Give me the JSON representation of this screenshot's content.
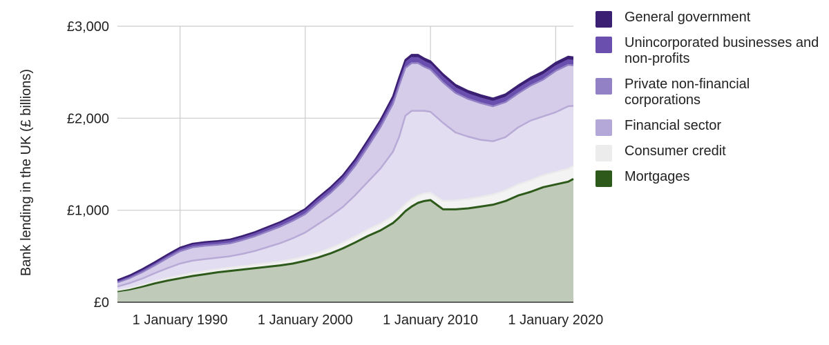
{
  "chart_data": {
    "type": "area",
    "stacked": true,
    "ylabel": "Bank lending in the UK (£ billions)",
    "xlabel": "",
    "x_ticks": [
      "1 January 1990",
      "1 January 2000",
      "1 January 2010",
      "1 January 2020"
    ],
    "y_ticks": [
      "£0",
      "£1,000",
      "£2,000",
      "£3,000"
    ],
    "ylim": [
      0,
      3000
    ],
    "grid": true,
    "legend_position": "right",
    "x_dates": [
      "1985-01-01",
      "1986-01-01",
      "1987-01-01",
      "1988-01-01",
      "1989-01-01",
      "1990-01-01",
      "1991-01-01",
      "1992-01-01",
      "1993-01-01",
      "1994-01-01",
      "1995-01-01",
      "1996-01-01",
      "1997-01-01",
      "1998-01-01",
      "1999-01-01",
      "2000-01-01",
      "2001-01-01",
      "2002-01-01",
      "2003-01-01",
      "2004-01-01",
      "2005-01-01",
      "2006-01-01",
      "2007-01-01",
      "2007-07-01",
      "2008-01-01",
      "2008-07-01",
      "2009-01-01",
      "2009-07-01",
      "2010-01-01",
      "2011-01-01",
      "2012-01-01",
      "2013-01-01",
      "2014-01-01",
      "2015-01-01",
      "2016-01-01",
      "2017-01-01",
      "2018-01-01",
      "2019-01-01",
      "2020-01-01",
      "2021-01-01",
      "2021-06-01"
    ],
    "series": [
      {
        "name": "Mortgages",
        "color": "#2d5a1b",
        "fill": "#bfcbb8",
        "values": [
          120,
          140,
          170,
          205,
          235,
          260,
          285,
          305,
          325,
          340,
          355,
          370,
          385,
          400,
          420,
          450,
          485,
          530,
          585,
          650,
          720,
          780,
          860,
          920,
          990,
          1040,
          1080,
          1100,
          1110,
          1010,
          1010,
          1020,
          1040,
          1060,
          1100,
          1160,
          1200,
          1250,
          1280,
          1310,
          1340
        ]
      },
      {
        "name": "Consumer credit",
        "color": "#ebebeb",
        "fill": "#f3f3f3",
        "values": [
          10,
          14,
          18,
          22,
          26,
          30,
          32,
          34,
          34,
          35,
          36,
          38,
          40,
          42,
          45,
          48,
          52,
          56,
          60,
          65,
          70,
          72,
          75,
          76,
          78,
          80,
          80,
          80,
          80,
          90,
          95,
          100,
          105,
          110,
          115,
          120,
          125,
          130,
          135,
          140,
          145
        ]
      },
      {
        "name": "Financial sector",
        "color": "#b8aad6",
        "fill": "#e2ddf0",
        "values": [
          40,
          55,
          70,
          90,
          110,
          130,
          135,
          130,
          125,
          125,
          135,
          150,
          175,
          200,
          230,
          260,
          310,
          350,
          390,
          450,
          520,
          600,
          700,
          800,
          960,
          960,
          920,
          900,
          880,
          850,
          740,
          680,
          620,
          580,
          580,
          620,
          650,
          640,
          650,
          680,
          650
        ]
      },
      {
        "name": "Private non-financial corporations",
        "color": "#9281c4",
        "fill": "#d4cce9",
        "values": [
          45,
          55,
          70,
          85,
          110,
          135,
          145,
          145,
          140,
          140,
          150,
          160,
          170,
          180,
          190,
          200,
          230,
          250,
          280,
          320,
          380,
          450,
          520,
          560,
          520,
          520,
          520,
          480,
          460,
          440,
          430,
          410,
          400,
          380,
          380,
          370,
          380,
          400,
          450,
          450,
          440
        ]
      },
      {
        "name": "Unincorporated businesses and non-profits",
        "color": "#6a4fae",
        "fill": "#6a4fae",
        "values": [
          15,
          17,
          19,
          21,
          23,
          25,
          26,
          26,
          27,
          28,
          29,
          30,
          32,
          34,
          36,
          38,
          40,
          42,
          44,
          46,
          48,
          50,
          52,
          54,
          55,
          56,
          55,
          55,
          54,
          54,
          53,
          52,
          51,
          50,
          50,
          50,
          50,
          50,
          50,
          52,
          50
        ]
      },
      {
        "name": "General government",
        "color": "#3b1f73",
        "fill": "#3b1f73",
        "values": [
          10,
          12,
          14,
          14,
          14,
          14,
          14,
          14,
          15,
          15,
          15,
          16,
          16,
          16,
          17,
          18,
          18,
          19,
          20,
          22,
          24,
          26,
          28,
          30,
          32,
          34,
          35,
          35,
          35,
          35,
          35,
          35,
          35,
          35,
          36,
          36,
          36,
          37,
          38,
          38,
          38
        ]
      }
    ]
  },
  "legend": [
    {
      "label": "General government",
      "color": "#3b1f73"
    },
    {
      "label": "Unincorporated businesses and non-profits",
      "color": "#6a4fae"
    },
    {
      "label": "Private non-financial corporations",
      "color": "#9281c4"
    },
    {
      "label": "Financial sector",
      "color": "#b4a8d8"
    },
    {
      "label": "Consumer credit",
      "color": "#ececec"
    },
    {
      "label": "Mortgages",
      "color": "#2d5a1b"
    }
  ]
}
